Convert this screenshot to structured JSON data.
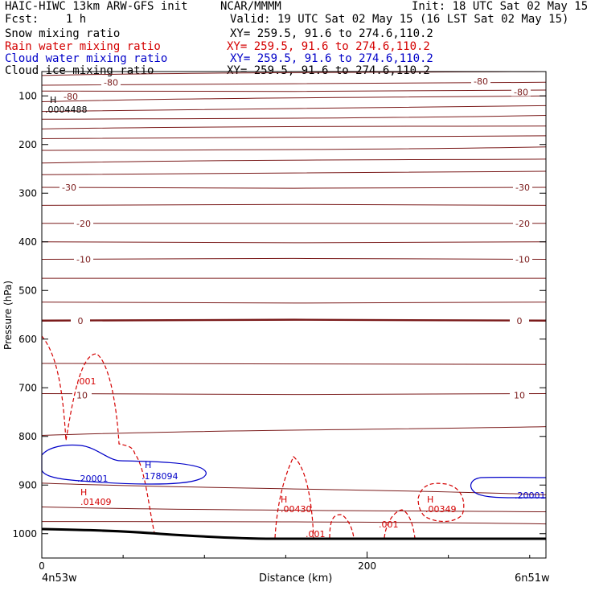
{
  "header": {
    "model": "HAIC-HIWC 13km ARW-GFS init",
    "org": "NCAR/MMMM",
    "init": "Init: 18 UTC Sat 02 May 15",
    "fcst": "Fcst:    1 h",
    "valid": "Valid: 19 UTC Sat 02 May 15 (16 LST Sat 02 May 15)",
    "fields": [
      {
        "name": "Snow mixing ratio",
        "xy": "XY= 259.5, 91.6 to 274.6,110.2",
        "color": "#000000"
      },
      {
        "name": "Rain water mixing ratio",
        "xy": "XY= 259.5, 91.6 to 274.6,110.2",
        "color": "#d40000"
      },
      {
        "name": "Cloud water mixing ratio",
        "xy": "XY= 259.5, 91.6 to 274.6,110.2",
        "color": "#0000c8"
      },
      {
        "name": "Cloud ice mixing ratio",
        "xy": "XY= 259.5, 91.6 to 274.6,110.2",
        "color": "#000000"
      }
    ]
  },
  "chart_data": {
    "type": "contour-cross-section",
    "xlabel": "Distance (km)",
    "ylabel": "Pressure (hPa)",
    "xlim": [
      0,
      310
    ],
    "ylim": [
      1050,
      50
    ],
    "x_ticks": [
      0,
      200
    ],
    "y_ticks": [
      100,
      200,
      300,
      400,
      500,
      600,
      700,
      800,
      900,
      1000
    ],
    "left_endpoint": "4n53w",
    "right_endpoint": "6n51w",
    "temperature_isotherms": [
      {
        "p_left": 58,
        "p_right": 50
      },
      {
        "p_left": 78,
        "p_right": 72
      },
      {
        "p_left": 90,
        "p_right": 88,
        "label": "-80"
      },
      {
        "p_left": 112,
        "p_right": 100
      },
      {
        "p_left": 132,
        "p_right": 120
      },
      {
        "p_left": 148,
        "p_right": 140
      },
      {
        "p_left": 168,
        "p_right": 162
      },
      {
        "p_left": 188,
        "p_right": 182
      },
      {
        "p_left": 212,
        "p_right": 205
      },
      {
        "p_left": 238,
        "p_right": 230
      },
      {
        "p_left": 262,
        "p_right": 255
      },
      {
        "p_left": 288,
        "p_right": 288,
        "label": "-30"
      },
      {
        "p_left": 325,
        "p_right": 325
      },
      {
        "p_left": 362,
        "p_right": 362,
        "label": "-20"
      },
      {
        "p_left": 400,
        "p_right": 400
      },
      {
        "p_left": 436,
        "p_right": 436,
        "label": "-10"
      },
      {
        "p_left": 475,
        "p_right": 475
      },
      {
        "p_left": 524,
        "p_right": 524
      },
      {
        "p_left": 562,
        "p_right": 562,
        "label": "0",
        "bold": true
      },
      {
        "p_left": 650,
        "p_right": 652
      },
      {
        "p_left": 712,
        "p_right": 712,
        "label": "10"
      },
      {
        "p_left": 798,
        "p_right": 780
      },
      {
        "p_left": 896,
        "p_right": 920
      },
      {
        "p_left": 945,
        "p_right": 955
      },
      {
        "p_left": 975,
        "p_right": 980
      }
    ],
    "isotherm_label_list": [
      "-80",
      "-80",
      "-80",
      "-80",
      "-30",
      "-30",
      "-20",
      "-20",
      "-10",
      "-10",
      "0",
      "0",
      "10",
      "10"
    ],
    "annotations": [
      {
        "text": "H",
        "color": "#000000"
      },
      {
        "text": ".0004488",
        "color": "#000000"
      },
      {
        "text": ".001",
        "color": "#d40000"
      },
      {
        "text": "H",
        "color": "#0000c8"
      },
      {
        "text": ".178094",
        "color": "#0000c8"
      },
      {
        "text": ".20001",
        "color": "#0000c8"
      },
      {
        "text": ".20001",
        "color": "#0000c8"
      },
      {
        "text": "H",
        "color": "#d40000"
      },
      {
        "text": ".01409",
        "color": "#d40000"
      },
      {
        "text": "H",
        "color": "#d40000"
      },
      {
        "text": ".00430",
        "color": "#d40000"
      },
      {
        "text": ".001",
        "color": "#d40000"
      },
      {
        "text": ".001",
        "color": "#d40000"
      },
      {
        "text": "H",
        "color": "#d40000"
      },
      {
        "text": ".00349",
        "color": "#d40000"
      }
    ],
    "colors": {
      "isotherm": "#7a1a1a",
      "rain": "#d40000",
      "cloud_water": "#0000c8",
      "terrain": "#000000"
    }
  }
}
